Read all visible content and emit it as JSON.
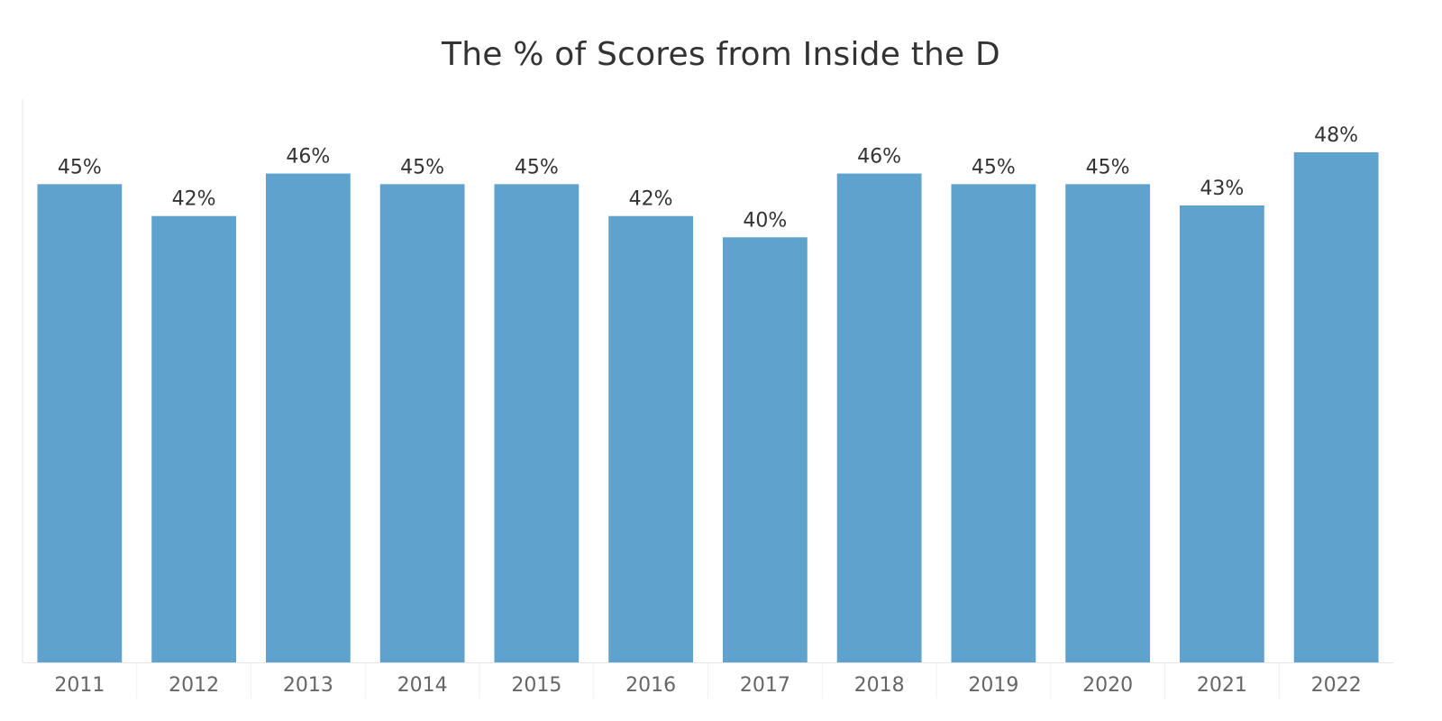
{
  "chart_data": {
    "type": "bar",
    "title": "The % of Scores from Inside the D",
    "categories": [
      "2011",
      "2012",
      "2013",
      "2014",
      "2015",
      "2016",
      "2017",
      "2018",
      "2019",
      "2020",
      "2021",
      "2022"
    ],
    "values": [
      45,
      42,
      46,
      45,
      45,
      42,
      40,
      46,
      45,
      45,
      43,
      48
    ],
    "value_labels": [
      "45%",
      "42%",
      "46%",
      "45%",
      "45%",
      "42%",
      "40%",
      "46%",
      "45%",
      "45%",
      "43%",
      "48%"
    ],
    "xlabel": "",
    "ylabel": "",
    "ylim": [
      0,
      53
    ],
    "grid": false,
    "legend": "none",
    "bar_color": "#5fa2cd",
    "axis_color": "#e6e6e6"
  }
}
